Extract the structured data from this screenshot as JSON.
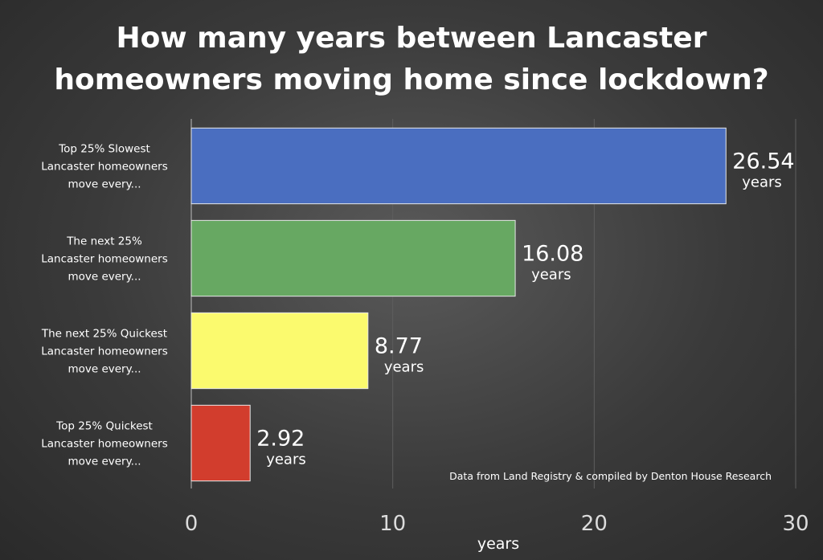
{
  "chart_data": {
    "type": "bar",
    "orientation": "horizontal",
    "title_lines": [
      "How many years between Lancaster",
      "homeowners moving home since lockdown?"
    ],
    "categories": [
      [
        "Top 25% Slowest",
        "Lancaster homeowners",
        "move every..."
      ],
      [
        "The next 25%",
        "Lancaster homeowners",
        "move every..."
      ],
      [
        "The next 25% Quickest",
        "Lancaster homeowners",
        "move every..."
      ],
      [
        "Top 25% Quickest",
        "Lancaster homeowners",
        "move every..."
      ]
    ],
    "values": [
      26.54,
      16.08,
      8.77,
      2.92
    ],
    "value_labels": [
      "26.54",
      "16.08",
      "8.77",
      "2.92"
    ],
    "value_unit": "years",
    "colors": [
      "#4a6ec0",
      "#67a862",
      "#fbfa6e",
      "#d23d2d"
    ],
    "xlabel": "years",
    "ylabel": "",
    "xlim": [
      0,
      30
    ],
    "xticks": [
      0,
      10,
      20,
      30
    ],
    "grid": true,
    "annotation": "Data from Land Registry & compiled by Denton House Research"
  }
}
